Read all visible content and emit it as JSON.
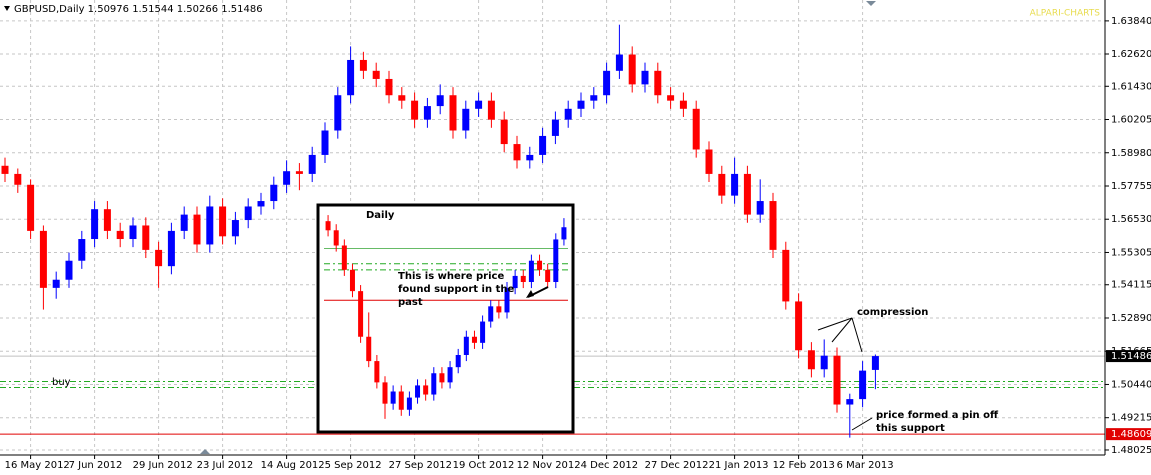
{
  "chart_data": {
    "type": "candlestick",
    "title": "GBPUSD,Daily  1.50976 1.51544 1.50266 1.51486",
    "watermark": "ALPARI-CHARTS",
    "up_color": "#0000ff",
    "down_color": "#ff0000",
    "grid": true,
    "categories": [
      null,
      null,
      "16 May 2012",
      null,
      null,
      null,
      null,
      "7 Jun 2012",
      null,
      null,
      null,
      null,
      "29 Jun 2012",
      null,
      null,
      null,
      null,
      "23 Jul 2012",
      null,
      null,
      null,
      null,
      "14 Aug 2012",
      null,
      null,
      null,
      null,
      "5 Sep 2012",
      null,
      null,
      null,
      null,
      "27 Sep 2012",
      null,
      null,
      null,
      null,
      "19 Oct 2012",
      null,
      null,
      null,
      null,
      "12 Nov 2012",
      null,
      null,
      null,
      null,
      "4 Dec 2012",
      null,
      null,
      null,
      null,
      "27 Dec 2012",
      null,
      null,
      null,
      null,
      "21 Jan 2013",
      null,
      null,
      null,
      null,
      "12 Feb 2013",
      null,
      null,
      null,
      null,
      "6 Mar 2013",
      null
    ],
    "ohlc": [
      [
        1.585,
        1.588,
        1.579,
        1.582
      ],
      [
        1.582,
        1.584,
        1.575,
        1.578
      ],
      [
        1.578,
        1.58,
        1.558,
        1.561
      ],
      [
        1.561,
        1.563,
        1.532,
        1.54
      ],
      [
        1.54,
        1.546,
        1.536,
        1.543
      ],
      [
        1.543,
        1.553,
        1.54,
        1.55
      ],
      [
        1.55,
        1.561,
        1.547,
        1.558
      ],
      [
        1.558,
        1.572,
        1.555,
        1.569
      ],
      [
        1.569,
        1.572,
        1.558,
        1.561
      ],
      [
        1.561,
        1.564,
        1.555,
        1.558
      ],
      [
        1.558,
        1.566,
        1.555,
        1.563
      ],
      [
        1.563,
        1.566,
        1.551,
        1.554
      ],
      [
        1.554,
        1.557,
        1.54,
        1.548
      ],
      [
        1.548,
        1.564,
        1.545,
        1.561
      ],
      [
        1.561,
        1.57,
        1.558,
        1.567
      ],
      [
        1.567,
        1.57,
        1.553,
        1.556
      ],
      [
        1.556,
        1.574,
        1.553,
        1.57
      ],
      [
        1.57,
        1.573,
        1.556,
        1.559
      ],
      [
        1.559,
        1.568,
        1.556,
        1.565
      ],
      [
        1.565,
        1.573,
        1.562,
        1.57
      ],
      [
        1.57,
        1.575,
        1.567,
        1.572
      ],
      [
        1.572,
        1.581,
        1.569,
        1.578
      ],
      [
        1.578,
        1.587,
        1.575,
        1.583
      ],
      [
        1.583,
        1.586,
        1.576,
        1.582
      ],
      [
        1.582,
        1.592,
        1.579,
        1.589
      ],
      [
        1.589,
        1.601,
        1.586,
        1.598
      ],
      [
        1.598,
        1.614,
        1.595,
        1.611
      ],
      [
        1.611,
        1.629,
        1.608,
        1.624
      ],
      [
        1.624,
        1.627,
        1.617,
        1.62
      ],
      [
        1.62,
        1.623,
        1.614,
        1.617
      ],
      [
        1.617,
        1.62,
        1.608,
        1.611
      ],
      [
        1.611,
        1.614,
        1.606,
        1.609
      ],
      [
        1.609,
        1.612,
        1.599,
        1.602
      ],
      [
        1.602,
        1.61,
        1.599,
        1.607
      ],
      [
        1.607,
        1.615,
        1.604,
        1.611
      ],
      [
        1.611,
        1.614,
        1.595,
        1.598
      ],
      [
        1.598,
        1.609,
        1.595,
        1.606
      ],
      [
        1.606,
        1.612,
        1.603,
        1.609
      ],
      [
        1.609,
        1.612,
        1.599,
        1.602
      ],
      [
        1.602,
        1.605,
        1.59,
        1.593
      ],
      [
        1.593,
        1.596,
        1.584,
        1.587
      ],
      [
        1.587,
        1.592,
        1.584,
        1.589
      ],
      [
        1.589,
        1.599,
        1.586,
        1.596
      ],
      [
        1.596,
        1.605,
        1.593,
        1.602
      ],
      [
        1.602,
        1.609,
        1.599,
        1.606
      ],
      [
        1.606,
        1.612,
        1.603,
        1.609
      ],
      [
        1.609,
        1.614,
        1.606,
        1.611
      ],
      [
        1.611,
        1.623,
        1.608,
        1.62
      ],
      [
        1.62,
        1.637,
        1.617,
        1.626
      ],
      [
        1.626,
        1.629,
        1.612,
        1.615
      ],
      [
        1.615,
        1.623,
        1.612,
        1.62
      ],
      [
        1.62,
        1.623,
        1.608,
        1.611
      ],
      [
        1.611,
        1.614,
        1.606,
        1.609
      ],
      [
        1.609,
        1.612,
        1.603,
        1.606
      ],
      [
        1.606,
        1.609,
        1.588,
        1.591
      ],
      [
        1.591,
        1.594,
        1.579,
        1.582
      ],
      [
        1.582,
        1.585,
        1.571,
        1.574
      ],
      [
        1.574,
        1.588,
        1.571,
        1.582
      ],
      [
        1.582,
        1.585,
        1.564,
        1.567
      ],
      [
        1.567,
        1.58,
        1.564,
        1.572
      ],
      [
        1.572,
        1.575,
        1.551,
        1.554
      ],
      [
        1.554,
        1.557,
        1.532,
        1.535
      ],
      [
        1.535,
        1.538,
        1.514,
        1.517
      ],
      [
        1.517,
        1.52,
        1.507,
        1.51
      ],
      [
        1.51,
        1.521,
        1.507,
        1.515
      ],
      [
        1.515,
        1.518,
        1.494,
        1.497
      ],
      [
        1.497,
        1.501,
        1.4848,
        1.499
      ],
      [
        1.499,
        1.513,
        1.496,
        1.5095
      ],
      [
        1.50976,
        1.51544,
        1.50266,
        1.51486
      ]
    ],
    "ylim": [
      1.4784,
      1.6461
    ],
    "yticks": [
      {
        "value": 1.6384,
        "label": "1.63840"
      },
      {
        "value": 1.6262,
        "label": "1.62620"
      },
      {
        "value": 1.6143,
        "label": "1.61430"
      },
      1.60205,
      {
        "value": 1.5898,
        "label": "1.58980"
      },
      1.57755,
      {
        "value": 1.5653,
        "label": "1.56530"
      },
      1.55305,
      1.54115,
      {
        "value": 1.5289,
        "label": "1.52890"
      },
      1.51665,
      {
        "value": 1.5044,
        "label": "1.50440"
      },
      1.49215,
      1.48025
    ],
    "current_price": 1.51486,
    "support_price": 1.48609,
    "order_levels": [
      1.5055,
      1.5033
    ],
    "order_label": "buy",
    "annotations": {
      "compression": "compression",
      "pin": [
        "price formed a pin off",
        "this support"
      ]
    },
    "inset": {
      "title": "Daily",
      "note": [
        "This is where price",
        "found support in the",
        "past"
      ],
      "ylim": [
        1.5,
        1.572
      ],
      "support": 1.542,
      "upper": 1.559,
      "zone": [
        1.554,
        1.552
      ],
      "ohlc": [
        [
          1.568,
          1.57,
          1.563,
          1.565
        ],
        [
          1.565,
          1.567,
          1.558,
          1.56
        ],
        [
          1.56,
          1.562,
          1.55,
          1.552
        ],
        [
          1.552,
          1.554,
          1.543,
          1.545
        ],
        [
          1.545,
          1.547,
          1.528,
          1.53
        ],
        [
          1.53,
          1.538,
          1.52,
          1.522
        ],
        [
          1.522,
          1.524,
          1.513,
          1.515
        ],
        [
          1.515,
          1.517,
          1.503,
          1.508
        ],
        [
          1.508,
          1.514,
          1.506,
          1.512
        ],
        [
          1.512,
          1.514,
          1.504,
          1.506
        ],
        [
          1.506,
          1.512,
          1.504,
          1.51
        ],
        [
          1.51,
          1.516,
          1.508,
          1.514
        ],
        [
          1.514,
          1.516,
          1.509,
          1.511
        ],
        [
          1.511,
          1.52,
          1.509,
          1.518
        ],
        [
          1.518,
          1.52,
          1.513,
          1.515
        ],
        [
          1.515,
          1.522,
          1.513,
          1.52
        ],
        [
          1.52,
          1.526,
          1.518,
          1.524
        ],
        [
          1.524,
          1.532,
          1.522,
          1.53
        ],
        [
          1.53,
          1.532,
          1.526,
          1.528
        ],
        [
          1.528,
          1.537,
          1.526,
          1.535
        ],
        [
          1.535,
          1.542,
          1.533,
          1.54
        ],
        [
          1.54,
          1.542,
          1.536,
          1.538
        ],
        [
          1.538,
          1.548,
          1.536,
          1.546
        ],
        [
          1.546,
          1.552,
          1.544,
          1.55
        ],
        [
          1.55,
          1.552,
          1.546,
          1.548
        ],
        [
          1.548,
          1.557,
          1.546,
          1.555
        ],
        [
          1.555,
          1.557,
          1.55,
          1.552
        ],
        [
          1.552,
          1.554,
          1.546,
          1.548
        ],
        [
          1.548,
          1.564,
          1.546,
          1.562
        ],
        [
          1.562,
          1.569,
          1.56,
          1.566
        ]
      ]
    }
  }
}
